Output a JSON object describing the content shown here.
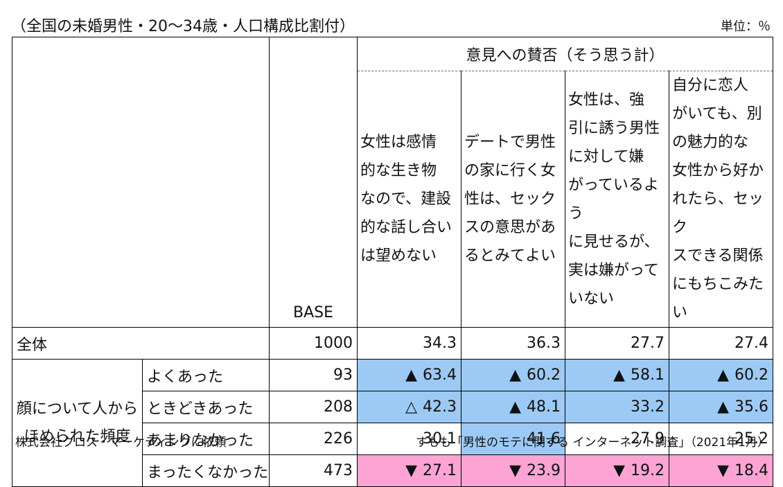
{
  "title": "（全国の未婚男性・20～34歳・人口構成比割付）",
  "unit_label": "単位：％",
  "footer_left": "株式会社クロス・マーケティングに依頼",
  "footer_right": "すもも「男性のモテに関する インターネット調査」（2021年1月）",
  "chart_data": {
    "type": "table",
    "opinion_header": "意見への賛否（そう思う計）",
    "base_header": "BASE",
    "group_label": "顔について人から\nほめられた頻度",
    "questions": [
      "女性は感情\n的な生き物\nなので、建設\n的な話し合い\nは望めない",
      "デートで男性\nの家に行く女\n性は、セック\nスの意思があ\nるとみてよい",
      "女性は、強\n引に誘う男性\nに対して嫌\nがっているよう\nに見せるが、\n実は嫌がって\nいない",
      "自分に恋人\nがいても、別\nの魅力的な\n女性から好か\nれたら、セック\nスできる関係\nにもちこみたい"
    ],
    "total": {
      "label": "全体",
      "base": "1000",
      "values": [
        "34.3",
        "36.3",
        "27.7",
        "27.4"
      ]
    },
    "rows": [
      {
        "label": "よくあった",
        "base": "93",
        "values": [
          "63.4",
          "60.2",
          "58.1",
          "60.2"
        ],
        "marks": [
          "▲",
          "▲",
          "▲",
          "▲"
        ],
        "highlight": [
          "blue",
          "blue",
          "blue",
          "blue"
        ]
      },
      {
        "label": "ときどきあった",
        "base": "208",
        "values": [
          "42.3",
          "48.1",
          "33.2",
          "35.6"
        ],
        "marks": [
          "△",
          "▲",
          "",
          "▲"
        ],
        "highlight": [
          "blue",
          "blue",
          "blue",
          "blue"
        ]
      },
      {
        "label": "あまりなかった",
        "base": "226",
        "values": [
          "30.1",
          "41.6",
          "27.9",
          "25.2"
        ],
        "marks": [
          "",
          "",
          "",
          ""
        ],
        "highlight": [
          "",
          "blue",
          "",
          ""
        ]
      },
      {
        "label": "まったくなかった",
        "base": "473",
        "values": [
          "27.1",
          "23.9",
          "19.2",
          "18.4"
        ],
        "marks": [
          "▼",
          "▼",
          "▼",
          "▼"
        ],
        "highlight": [
          "pink",
          "pink",
          "pink",
          "pink"
        ]
      }
    ],
    "colors": {
      "blue": "#9ccaf5",
      "pink": "#fda4d5"
    }
  }
}
